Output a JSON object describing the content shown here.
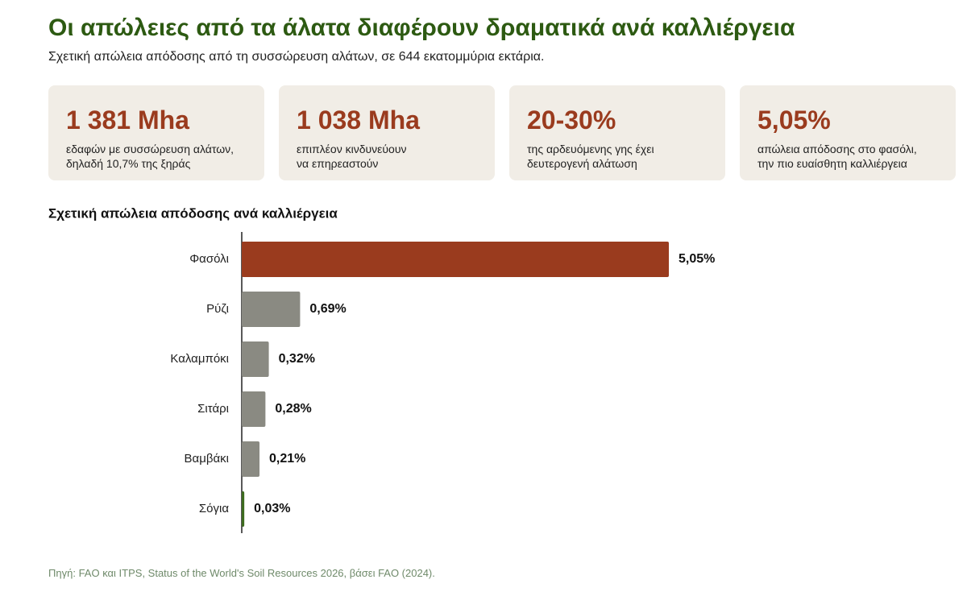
{
  "header": {
    "title": "Οι απώλειες από τα άλατα διαφέρουν δραματικά ανά καλλιέργεια",
    "subtitle": "Σχετική απώλεια απόδοσης από τη συσσώρευση αλάτων, σε 644 εκατομμύρια εκτάρια."
  },
  "cards": [
    {
      "value": "1 381 Mha",
      "lines": [
        "εδαφών με συσσώρευση αλάτων,",
        "δηλαδή 10,7% της ξηράς"
      ]
    },
    {
      "value": "1 038 Mha",
      "lines": [
        "επιπλέον κινδυνεύουν",
        "να επηρεαστούν"
      ]
    },
    {
      "value": "20-30%",
      "lines": [
        "της αρδευόμενης γης έχει",
        "δευτερογενή αλάτωση"
      ]
    },
    {
      "value": "5,05%",
      "lines": [
        "απώλεια απόδοσης στο φασόλι,",
        "την πιο ευαίσθητη καλλιέργεια"
      ]
    }
  ],
  "chart_data": {
    "type": "hbar",
    "title": "Σχετική απώλεια απόδοσης ανά καλλιέργεια",
    "categories": [
      "Φασόλι",
      "Ρύζι",
      "Καλαμπόκι",
      "Σιτάρι",
      "Βαμβάκι",
      "Σόγια"
    ],
    "values": [
      5.05,
      0.69,
      0.32,
      0.28,
      0.21,
      0.03
    ],
    "value_labels": [
      "5,05%",
      "0,69%",
      "0,32%",
      "0,28%",
      "0,21%",
      "0,03%"
    ],
    "colors": [
      "#9a3b1e",
      "#8a8a82",
      "#8a8a82",
      "#8a8a82",
      "#8a8a82",
      "#3d6b1f"
    ]
  },
  "source": "Πηγή: FAO και ITPS, Status of the World's Soil Resources 2026, βάσει FAO (2024)."
}
